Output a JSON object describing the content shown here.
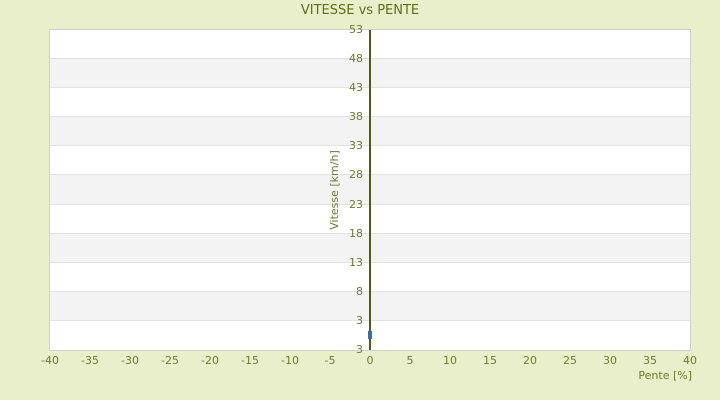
{
  "colors": {
    "page_background": "#eaefcb",
    "title_text": "#5f6e14",
    "tick_text": "#6d7b2e",
    "axis_line": "#4f5c14",
    "band_gray": "#f3f3f3",
    "band_white": "#ffffff",
    "band_separator": "#e2e2e2",
    "plot_border": "#cfcfcf",
    "marker_blue": "#3c6e9e"
  },
  "chart_data": {
    "type": "scatter",
    "title": "VITESSE vs PENTE",
    "xlabel": "Pente [%]",
    "ylabel": "Vitesse [km/h]",
    "xlim": [
      -40,
      40
    ],
    "ylim": [
      -2,
      53
    ],
    "x_ticks": [
      -40,
      -35,
      -30,
      -25,
      -20,
      -15,
      -10,
      -5,
      0,
      5,
      10,
      15,
      20,
      25,
      30,
      35,
      40
    ],
    "y_ticks": [
      53,
      48,
      43,
      38,
      33,
      28,
      23,
      18,
      13,
      8,
      3
    ],
    "y_axis_bottom_label": "3",
    "grid": "horizontal-bands-alternating",
    "legend_position": "none",
    "vertical_axis_line_at_x": 0,
    "points": [
      {
        "x": 0,
        "y": 1.0
      },
      {
        "x": 0,
        "y": 0.2
      }
    ]
  }
}
